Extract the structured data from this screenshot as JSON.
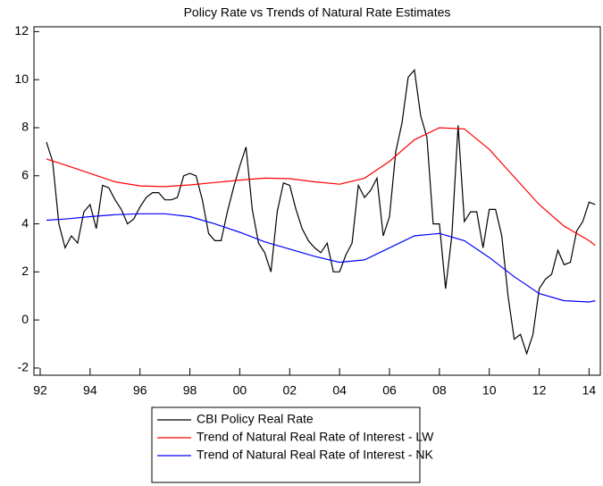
{
  "chart_data": {
    "type": "line",
    "title": "Policy Rate vs Trends of Natural Rate Estimates",
    "xlim": [
      1991.75,
      2014.45
    ],
    "xticks": [
      {
        "value": 1992,
        "label": "92"
      },
      {
        "value": 1994,
        "label": "94"
      },
      {
        "value": 1996,
        "label": "96"
      },
      {
        "value": 1998,
        "label": "98"
      },
      {
        "value": 2000,
        "label": "00"
      },
      {
        "value": 2002,
        "label": "02"
      },
      {
        "value": 2004,
        "label": "04"
      },
      {
        "value": 2006,
        "label": "06"
      },
      {
        "value": 2008,
        "label": "08"
      },
      {
        "value": 2010,
        "label": "10"
      },
      {
        "value": 2012,
        "label": "12"
      },
      {
        "value": 2014,
        "label": "14"
      }
    ],
    "ylim": [
      -2.3,
      12.2
    ],
    "yticks": [
      -2,
      0,
      2,
      4,
      6,
      8,
      10,
      12
    ],
    "series": [
      {
        "name": "CBI Policy Real Rate",
        "color": "#000000",
        "x": [
          1992.25,
          1992.5,
          1992.75,
          1993,
          1993.25,
          1993.5,
          1993.75,
          1994,
          1994.25,
          1994.5,
          1994.75,
          1995,
          1995.25,
          1995.5,
          1995.75,
          1996,
          1996.25,
          1996.5,
          1996.75,
          1997,
          1997.25,
          1997.5,
          1997.75,
          1998,
          1998.25,
          1998.5,
          1998.75,
          1999,
          1999.25,
          1999.5,
          1999.75,
          2000,
          2000.25,
          2000.5,
          2000.75,
          2001,
          2001.25,
          2001.5,
          2001.75,
          2002,
          2002.25,
          2002.5,
          2002.75,
          2003,
          2003.25,
          2003.5,
          2003.75,
          2004,
          2004.25,
          2004.5,
          2004.75,
          2005,
          2005.25,
          2005.5,
          2005.75,
          2006,
          2006.25,
          2006.5,
          2006.75,
          2007,
          2007.25,
          2007.5,
          2007.75,
          2008,
          2008.25,
          2008.5,
          2008.75,
          2009,
          2009.25,
          2009.5,
          2009.75,
          2010,
          2010.25,
          2010.5,
          2010.75,
          2011,
          2011.25,
          2011.5,
          2011.75,
          2012,
          2012.25,
          2012.5,
          2012.75,
          2013,
          2013.25,
          2013.5,
          2013.75,
          2014,
          2014.25
        ],
        "values": [
          7.4,
          6.6,
          4.0,
          3.0,
          3.5,
          3.2,
          4.5,
          4.8,
          3.8,
          5.6,
          5.5,
          5.0,
          4.6,
          4.0,
          4.2,
          4.7,
          5.1,
          5.3,
          5.3,
          5.0,
          5.0,
          5.1,
          6.0,
          6.1,
          6.0,
          5.0,
          3.6,
          3.3,
          3.3,
          4.5,
          5.5,
          6.4,
          7.2,
          4.6,
          3.2,
          2.8,
          2.0,
          4.5,
          5.7,
          5.6,
          4.6,
          3.8,
          3.3,
          3.0,
          2.8,
          3.2,
          2.0,
          2.0,
          2.7,
          3.2,
          5.6,
          5.1,
          5.4,
          5.9,
          3.5,
          4.3,
          7.0,
          8.2,
          10.1,
          10.4,
          8.5,
          7.6,
          4.0,
          4.0,
          1.3,
          3.5,
          8.1,
          4.1,
          4.5,
          4.5,
          3.0,
          4.6,
          4.6,
          3.5,
          1.0,
          -0.8,
          -0.6,
          -1.4,
          -0.6,
          1.3,
          1.7,
          1.9,
          2.9,
          2.3,
          2.4,
          3.7,
          4.1,
          4.9,
          4.8
        ]
      },
      {
        "name": "Trend of Natural Real Rate of Interest - LW",
        "color": "#ff0000",
        "x": [
          1992.25,
          1993,
          1994,
          1995,
          1996,
          1997,
          1998,
          1999,
          2000,
          2001,
          2002,
          2003,
          2004,
          2005,
          2006,
          2007,
          2008,
          2009,
          2010,
          2011,
          2012,
          2013,
          2014,
          2014.25
        ],
        "values": [
          6.7,
          6.45,
          6.1,
          5.75,
          5.58,
          5.55,
          5.62,
          5.72,
          5.82,
          5.9,
          5.88,
          5.75,
          5.65,
          5.9,
          6.6,
          7.5,
          8.0,
          7.95,
          7.1,
          5.95,
          4.8,
          3.9,
          3.3,
          3.1
        ]
      },
      {
        "name": "Trend of Natural Real Rate of Interest - NK",
        "color": "#0000ff",
        "x": [
          1992.25,
          1993,
          1994,
          1995,
          1996,
          1997,
          1998,
          1999,
          2000,
          2001,
          2002,
          2003,
          2004,
          2005,
          2006,
          2007,
          2008,
          2009,
          2010,
          2011,
          2012,
          2013,
          2014,
          2014.25
        ],
        "values": [
          4.15,
          4.2,
          4.3,
          4.38,
          4.42,
          4.42,
          4.3,
          4.0,
          3.65,
          3.25,
          2.95,
          2.65,
          2.4,
          2.5,
          3.0,
          3.5,
          3.6,
          3.3,
          2.6,
          1.8,
          1.1,
          0.8,
          0.75,
          0.8
        ]
      }
    ]
  }
}
